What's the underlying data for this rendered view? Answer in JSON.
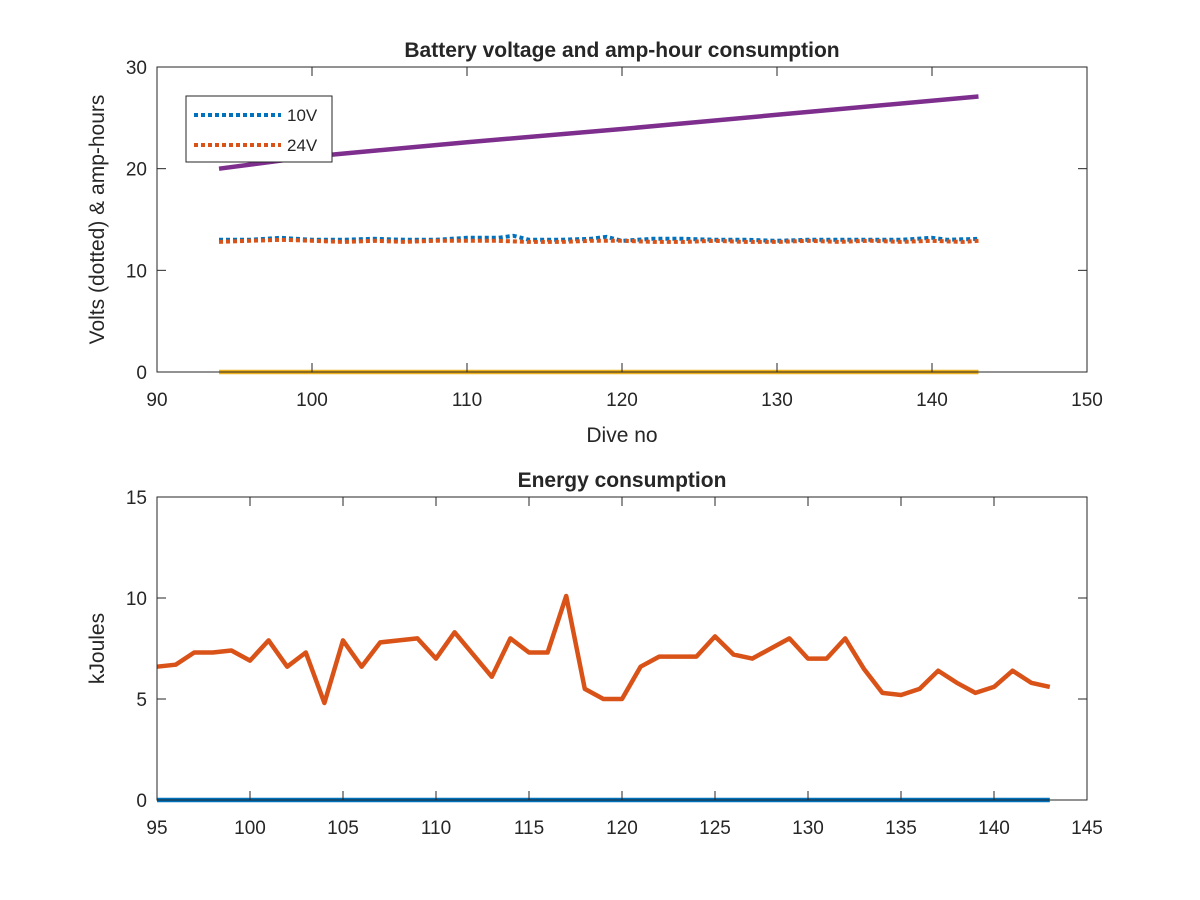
{
  "chart_data": [
    {
      "type": "line",
      "title": "Battery voltage and amp-hour consumption",
      "xlabel": "Dive no",
      "ylabel": "Volts (dotted) & amp-hours",
      "xlim": [
        90,
        150
      ],
      "ylim": [
        0,
        30
      ],
      "xticks": [
        "90",
        "100",
        "110",
        "120",
        "130",
        "140",
        "150"
      ],
      "yticks": [
        "0",
        "10",
        "20",
        "30"
      ],
      "grid": false,
      "legend_position": "top-left",
      "series": [
        {
          "name": "10V",
          "style": "dotted",
          "color": "#0072BD",
          "in_legend": true,
          "x": [
            94,
            96,
            98,
            100,
            102,
            104,
            106,
            108,
            110,
            112,
            113,
            114,
            116,
            118,
            119,
            120,
            122,
            124,
            126,
            128,
            130,
            132,
            134,
            136,
            138,
            140,
            141,
            143
          ],
          "values": [
            13.0,
            13.0,
            13.2,
            13.0,
            13.0,
            13.1,
            13.0,
            13.0,
            13.2,
            13.2,
            13.4,
            13.0,
            13.0,
            13.1,
            13.3,
            12.9,
            13.1,
            13.1,
            13.0,
            13.0,
            12.9,
            13.0,
            13.0,
            13.0,
            13.0,
            13.2,
            13.0,
            13.1
          ]
        },
        {
          "name": "24V",
          "style": "dotted",
          "color": "#D95319",
          "in_legend": true,
          "x": [
            94,
            96,
            98,
            100,
            102,
            104,
            106,
            108,
            110,
            112,
            114,
            116,
            118,
            120,
            122,
            124,
            126,
            128,
            130,
            132,
            134,
            136,
            138,
            140,
            142,
            143
          ],
          "values": [
            12.8,
            12.9,
            13.0,
            12.9,
            12.8,
            12.9,
            12.8,
            12.9,
            12.9,
            12.9,
            12.8,
            12.8,
            12.9,
            12.9,
            12.8,
            12.8,
            12.9,
            12.8,
            12.8,
            12.9,
            12.8,
            12.9,
            12.8,
            12.9,
            12.8,
            12.9
          ]
        },
        {
          "name": "",
          "style": "solid",
          "color": "#EDB120",
          "in_legend": false,
          "x": [
            94,
            143
          ],
          "values": [
            0,
            0
          ]
        },
        {
          "name": "",
          "style": "solid",
          "color": "#7E2F8E",
          "in_legend": false,
          "x": [
            94,
            100,
            110,
            120,
            130,
            143
          ],
          "values": [
            20.0,
            21.2,
            22.6,
            23.9,
            25.3,
            27.1
          ]
        }
      ]
    },
    {
      "type": "line",
      "title": "Energy consumption",
      "xlabel": "",
      "ylabel": "kJoules",
      "xlim": [
        95,
        145
      ],
      "ylim": [
        0,
        15
      ],
      "xticks": [
        "95",
        "100",
        "105",
        "110",
        "115",
        "120",
        "125",
        "130",
        "135",
        "140",
        "145"
      ],
      "yticks": [
        "0",
        "5",
        "10",
        "15"
      ],
      "grid": false,
      "series": [
        {
          "name": "",
          "style": "solid",
          "color": "#0072BD",
          "x": [
            95,
            143
          ],
          "values": [
            0,
            0
          ]
        },
        {
          "name": "",
          "style": "solid",
          "color": "#D95319",
          "x": [
            95,
            96,
            97,
            98,
            99,
            100,
            101,
            102,
            103,
            104,
            105,
            106,
            107,
            108,
            109,
            110,
            111,
            112,
            113,
            114,
            115,
            116,
            117,
            118,
            119,
            120,
            121,
            122,
            123,
            124,
            125,
            126,
            127,
            128,
            129,
            130,
            131,
            132,
            133,
            134,
            135,
            136,
            137,
            138,
            139,
            140,
            141,
            142,
            143
          ],
          "values": [
            6.6,
            6.7,
            7.3,
            7.3,
            7.4,
            6.9,
            7.9,
            6.6,
            7.3,
            4.8,
            7.9,
            6.6,
            7.8,
            7.9,
            8.0,
            7.0,
            8.3,
            7.2,
            6.1,
            8.0,
            7.3,
            7.3,
            10.1,
            5.5,
            5.0,
            5.0,
            6.6,
            7.1,
            7.1,
            7.1,
            8.1,
            7.2,
            7.0,
            7.5,
            8.0,
            7.0,
            7.0,
            8.0,
            6.5,
            5.3,
            5.2,
            5.5,
            6.4,
            5.8,
            5.3,
            5.6,
            6.4,
            5.8,
            5.6
          ]
        }
      ]
    }
  ]
}
